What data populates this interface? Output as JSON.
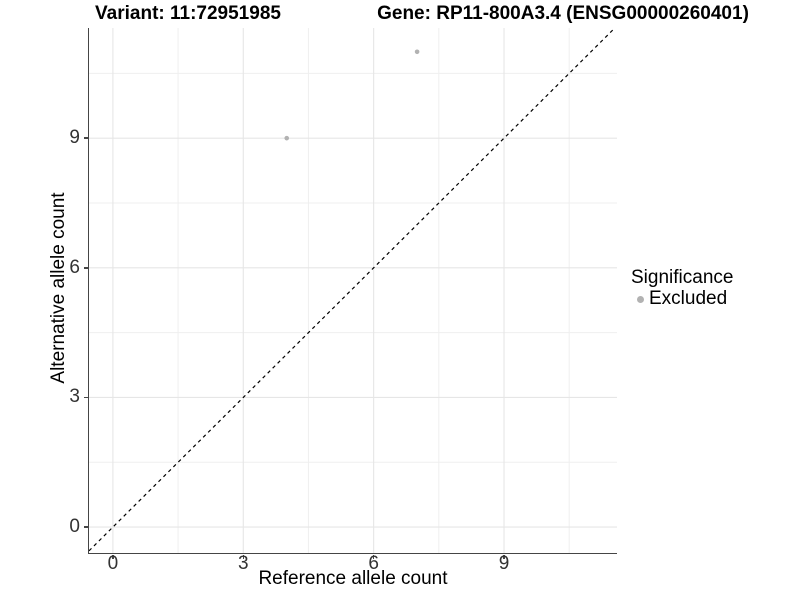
{
  "header": {
    "variant_title": "Variant: 11:72951985",
    "gene_title": "Gene: RP11-800A3.4 (ENSG00000260401)"
  },
  "legend": {
    "title": "Significance",
    "items": [
      {
        "label": "Excluded",
        "color": "#b2b2b2"
      }
    ]
  },
  "chart_data": {
    "type": "scatter",
    "title": "Variant: 11:72951985 | Gene: RP11-800A3.4 (ENSG00000260401)",
    "xlabel": "Reference allele count",
    "ylabel": "Alternative allele count",
    "xlim": [
      -0.55,
      11.6
    ],
    "ylim": [
      -0.6,
      11.55
    ],
    "x_breaks": [
      0,
      3,
      6,
      9
    ],
    "y_breaks": [
      0,
      3,
      6,
      9
    ],
    "x_minor_breaks": [
      1.5,
      4.5,
      7.5,
      10.5
    ],
    "y_minor_breaks": [
      1.5,
      4.5,
      7.5,
      10.5
    ],
    "grid": "major+minor",
    "legend_position": "right",
    "series": [
      {
        "name": "Excluded",
        "color": "#b2b2b2",
        "point_radius": 2.3,
        "points": [
          [
            4,
            9
          ],
          [
            7,
            11
          ]
        ]
      }
    ],
    "reference_line": {
      "kind": "y=x",
      "style": "dashed",
      "color": "#000000"
    }
  },
  "style": {
    "grid_major_color": "#e6e6e6",
    "grid_minor_color": "#efefef",
    "axis_line_color": "#454545",
    "tick_color": "#454545",
    "tick_label_color": "#333333"
  }
}
